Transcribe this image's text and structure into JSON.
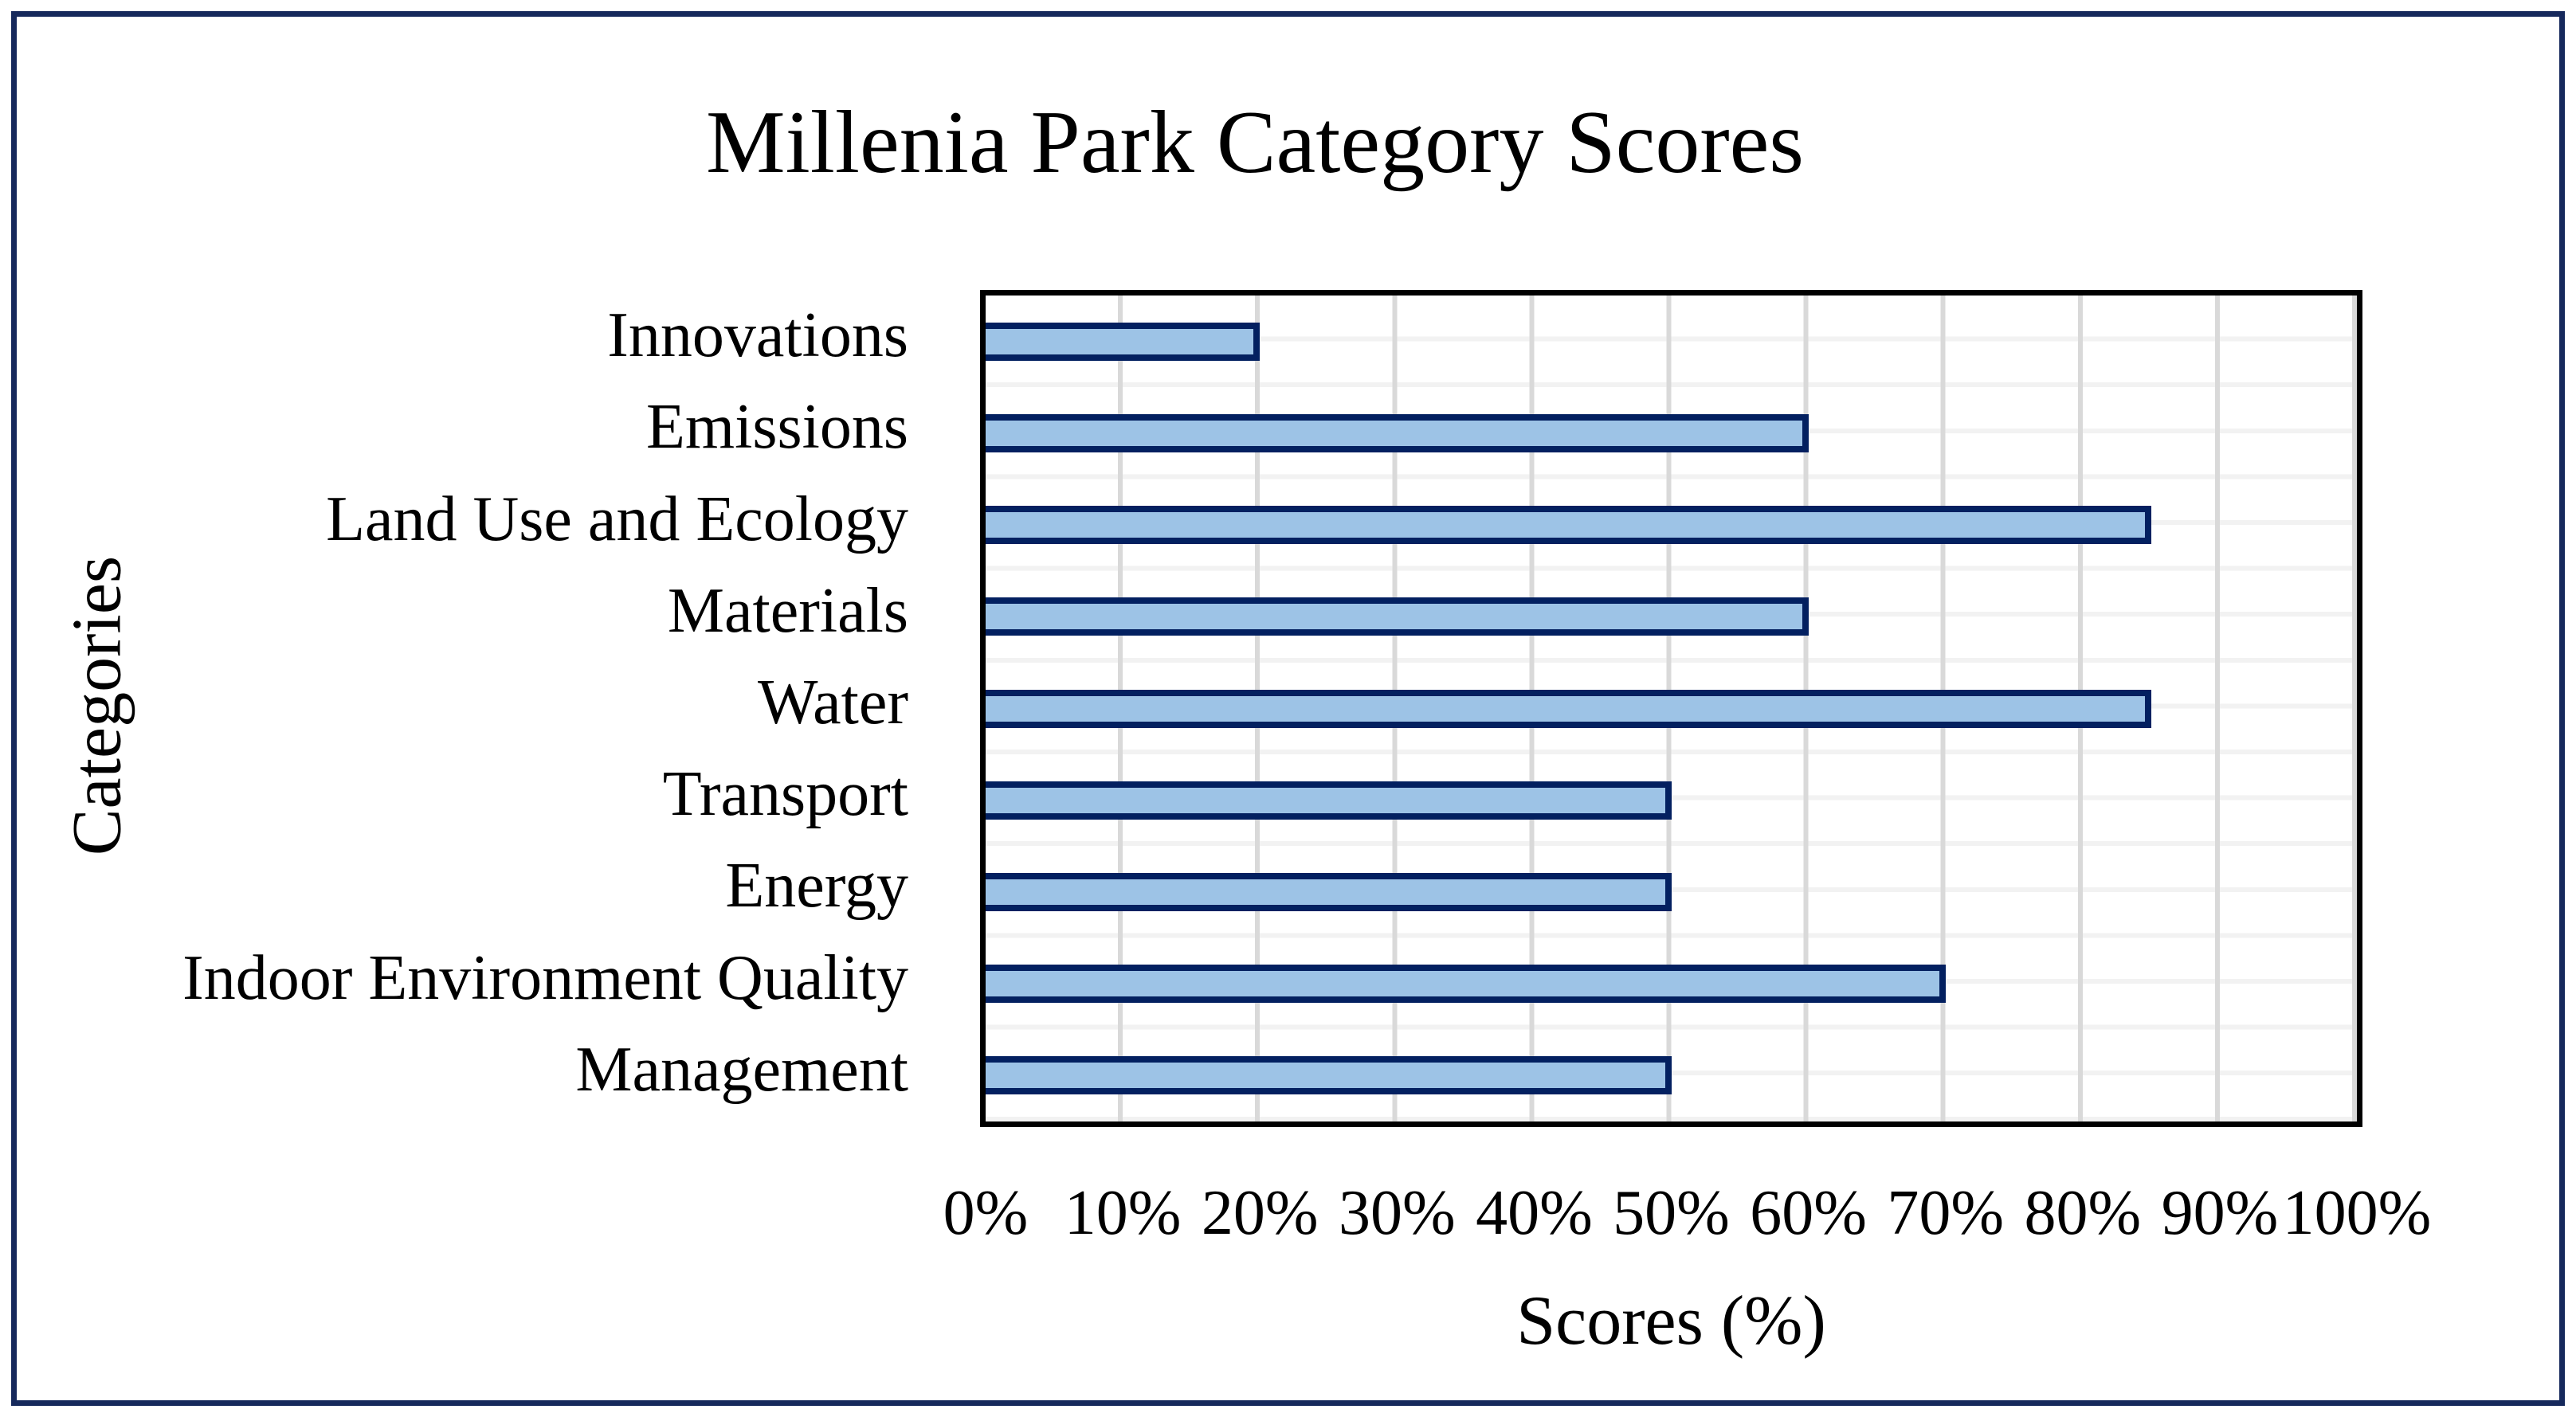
{
  "figure": {
    "title": "Millenia Park Category Scores",
    "x_axis_title": "Scores (%)",
    "y_axis_title": "Categories"
  },
  "colors": {
    "background": "#FFFFFF",
    "text": "#000000",
    "frame_border": "#16295C",
    "plot_border": "#000000",
    "gridline_vertical": "#D9D9D9",
    "gridline_horizontal": "#F2F2F2",
    "bar_fill": "#9DC3E6",
    "bar_border": "#032060"
  },
  "chart_data": {
    "type": "bar",
    "orientation": "horizontal",
    "title": "Millenia Park Category Scores",
    "xlabel": "Scores (%)",
    "ylabel": "Categories",
    "categories": [
      "Innovations",
      "Emissions",
      "Land Use and Ecology",
      "Materials",
      "Water",
      "Transport",
      "Energy",
      "Indoor Environment Quality",
      "Management"
    ],
    "values": [
      20,
      60,
      85,
      60,
      85,
      50,
      50,
      70,
      50
    ],
    "unit": "%",
    "xlim": [
      0,
      100
    ],
    "x_tick_step": 10,
    "x_tick_labels": [
      "0%",
      "10%",
      "20%",
      "30%",
      "40%",
      "50%",
      "60%",
      "70%",
      "80%",
      "90%",
      "100%"
    ],
    "grid": "on",
    "legend": "none"
  }
}
